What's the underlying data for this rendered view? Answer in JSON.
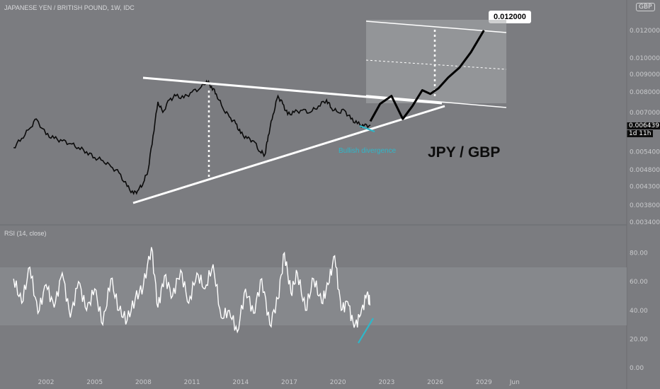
{
  "header": {
    "symbol": "JAPANESE YEN / BRITISH POUND, 1W, IDC",
    "currency_badge": "GBP",
    "rsi_title": "RSI (14, close)"
  },
  "price_panel": {
    "current_price": "0.006439",
    "countdown": "1d 11h",
    "target_label": "0.012000",
    "pair_label": "JPY / GBP",
    "breakout_note": "Bullish divergence"
  },
  "chart_data": [
    {
      "type": "line",
      "title": "JAPANESE YEN / BRITISH POUND, 1W, IDC",
      "y_ticks": [
        "0.012000",
        "0.010000",
        "0.009000",
        "0.008000",
        "0.007000",
        "0.006439",
        "0.005400",
        "0.004800",
        "0.004300",
        "0.003800",
        "0.003400"
      ],
      "ylim": [
        0.0034,
        0.0135
      ],
      "x_ticks": [
        "2002",
        "2005",
        "2008",
        "2011",
        "2014",
        "2017",
        "2020",
        "2023",
        "2026",
        "2029",
        "Jun"
      ],
      "x": [
        2000.0,
        2000.5,
        2001.0,
        2001.4,
        2002.0,
        2002.5,
        2003.0,
        2003.5,
        2004.0,
        2004.5,
        2005.0,
        2005.5,
        2006.0,
        2006.5,
        2007.0,
        2007.4,
        2007.7,
        2008.0,
        2008.3,
        2008.6,
        2008.9,
        2009.2,
        2009.6,
        2010.0,
        2010.5,
        2011.0,
        2011.5,
        2011.9,
        2012.2,
        2012.5,
        2012.9,
        2013.3,
        2013.7,
        2014.0,
        2014.4,
        2014.8,
        2015.2,
        2015.5,
        2015.7,
        2016.0,
        2016.3,
        2016.6,
        2016.9,
        2017.3,
        2017.8,
        2018.3,
        2018.8,
        2019.3,
        2019.6,
        2020.0,
        2020.4,
        2020.8,
        2021.2,
        2021.6,
        2022.0
      ],
      "values": [
        0.00555,
        0.0059,
        0.0063,
        0.0067,
        0.00605,
        0.0059,
        0.0058,
        0.0057,
        0.00555,
        0.0054,
        0.0052,
        0.0051,
        0.0049,
        0.0047,
        0.0043,
        0.0041,
        0.0042,
        0.0044,
        0.0048,
        0.006,
        0.0075,
        0.007,
        0.0076,
        0.0078,
        0.0077,
        0.008,
        0.0082,
        0.0086,
        0.0083,
        0.0079,
        0.0072,
        0.0068,
        0.0065,
        0.0061,
        0.0059,
        0.0058,
        0.0054,
        0.0053,
        0.006,
        0.0069,
        0.0078,
        0.0074,
        0.0069,
        0.007,
        0.0071,
        0.007,
        0.0073,
        0.0076,
        0.0072,
        0.007,
        0.0071,
        0.0067,
        0.0065,
        0.0064,
        0.006439
      ]
    },
    {
      "type": "line",
      "title": "RSI (14, close)",
      "y_ticks": [
        "80.00",
        "60.00",
        "40.00",
        "20.00",
        "0.00"
      ],
      "ylim": [
        0,
        85
      ],
      "band": [
        30,
        70
      ],
      "x": [
        2000.0,
        2000.5,
        2001.0,
        2001.5,
        2002.0,
        2002.5,
        2003.0,
        2003.5,
        2004.0,
        2004.5,
        2005.0,
        2005.5,
        2006.0,
        2006.5,
        2007.0,
        2007.5,
        2008.0,
        2008.5,
        2008.9,
        2009.3,
        2009.8,
        2010.3,
        2010.8,
        2011.3,
        2011.8,
        2012.3,
        2012.8,
        2013.3,
        2013.8,
        2014.3,
        2014.8,
        2015.3,
        2015.8,
        2016.3,
        2016.7,
        2017.1,
        2017.5,
        2018.0,
        2018.5,
        2019.0,
        2019.4,
        2019.8,
        2020.2,
        2020.6,
        2021.0,
        2021.4,
        2021.8,
        2022.0
      ],
      "values": [
        62,
        45,
        70,
        38,
        58,
        42,
        66,
        35,
        60,
        40,
        55,
        30,
        62,
        40,
        33,
        48,
        57,
        84,
        42,
        64,
        50,
        68,
        45,
        66,
        55,
        72,
        35,
        40,
        25,
        55,
        38,
        62,
        30,
        48,
        80,
        52,
        66,
        40,
        62,
        45,
        58,
        78,
        40,
        46,
        28,
        37,
        52,
        44
      ]
    }
  ],
  "projection": {
    "x": [
      2022.0,
      2022.6,
      2023.3,
      2024.0,
      2024.6,
      2025.2,
      2025.7,
      2026.2,
      2026.8,
      2027.5,
      2028.2,
      2029.0
    ],
    "values": [
      0.0066,
      0.0074,
      0.0078,
      0.0067,
      0.0073,
      0.0081,
      0.0079,
      0.0082,
      0.0088,
      0.0094,
      0.0104,
      0.012
    ]
  },
  "colors": {
    "background": "#7b7c80",
    "price_line": "#0b0b0b",
    "rsi_line": "#ffffff",
    "trendlines": "#ffffff",
    "accent": "#2fb7c9",
    "target_box": "#a8a9ac"
  }
}
